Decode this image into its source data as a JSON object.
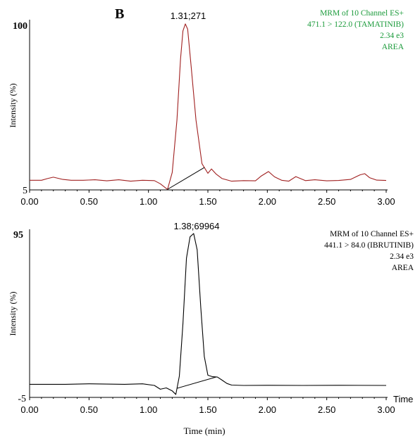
{
  "panel_label": "B",
  "xlabel": "Time  (min)",
  "x_end_label": "Time",
  "chart_data": [
    {
      "type": "line",
      "color": "#a02020",
      "xlim": [
        0.0,
        3.0
      ],
      "ylim": [
        5,
        100
      ],
      "ytick_labels": [
        "100",
        "5"
      ],
      "xtick_labels": [
        "0.00",
        "0.50",
        "1.00",
        "1.50",
        "2.00",
        "2.50",
        "3.00"
      ],
      "ylabel": "Intensity   (%)",
      "peak_label": "1.31;271",
      "info_color": "#1a9a3a",
      "info": [
        "MRM of 10 Channel ES+",
        "471.1  >  122.0 (TAMATINIB)",
        "2.34 e3",
        "AREA"
      ],
      "series": [
        {
          "x": [
            0.0,
            0.1,
            0.15,
            0.2,
            0.28,
            0.35,
            0.45,
            0.55,
            0.65,
            0.75,
            0.85,
            0.95,
            1.05,
            1.1,
            1.16,
            1.2,
            1.24,
            1.27,
            1.29,
            1.31,
            1.33,
            1.36,
            1.4,
            1.45,
            1.5,
            1.53,
            1.57,
            1.62,
            1.7,
            1.8,
            1.9,
            1.95,
            2.01,
            2.06,
            2.12,
            2.18,
            2.24,
            2.32,
            2.4,
            2.5,
            2.6,
            2.7,
            2.78,
            2.82,
            2.86,
            2.92,
            3.0
          ],
          "y": [
            10.5,
            10.5,
            11.5,
            12.3,
            11.0,
            10.5,
            10.5,
            10.8,
            10.2,
            10.8,
            10.0,
            10.5,
            10.3,
            8.5,
            5.3,
            15.0,
            45.0,
            80.0,
            96.0,
            100.0,
            97.0,
            75.0,
            45.0,
            20.0,
            14.5,
            17.0,
            14.0,
            11.5,
            10.0,
            10.3,
            10.2,
            13.0,
            15.5,
            12.5,
            10.5,
            10.0,
            12.6,
            10.3,
            10.8,
            10.2,
            10.4,
            11.0,
            13.6,
            14.3,
            12.0,
            10.6,
            10.4
          ]
        }
      ],
      "baseline_x": [
        1.16,
        1.47
      ]
    },
    {
      "type": "line",
      "color": "#000000",
      "xlim": [
        0.0,
        3.0
      ],
      "ylim": [
        -5,
        95
      ],
      "ytick_labels": [
        "95",
        "-5"
      ],
      "xtick_labels": [
        "0.00",
        "0.50",
        "1.00",
        "1.50",
        "2.00",
        "2.50",
        "3.00"
      ],
      "ylabel": "Intensity   (%)",
      "peak_label": "1.38;69964",
      "info_color": "#000000",
      "info": [
        "MRM of 10 Channel ES+",
        "441.1  >  84.0 (IBRUTINIB)",
        "2.34 e3",
        "AREA"
      ],
      "series": [
        {
          "x": [
            0.0,
            0.3,
            0.5,
            0.8,
            0.95,
            1.05,
            1.1,
            1.15,
            1.2,
            1.23,
            1.26,
            1.29,
            1.32,
            1.35,
            1.38,
            1.41,
            1.44,
            1.47,
            1.5,
            1.54,
            1.58,
            1.62,
            1.66,
            1.7,
            1.8,
            2.0,
            2.3,
            2.6,
            3.0
          ],
          "y": [
            3.0,
            3.0,
            3.3,
            3.0,
            3.3,
            2.3,
            0.0,
            0.8,
            -1.0,
            -3.2,
            8.0,
            40.0,
            80.0,
            93.0,
            95.0,
            85.0,
            50.0,
            20.0,
            8.5,
            7.6,
            7.4,
            5.5,
            3.5,
            2.5,
            2.3,
            2.4,
            2.3,
            2.4,
            2.3
          ]
        }
      ],
      "baseline_x": [
        1.24,
        1.57
      ]
    }
  ]
}
